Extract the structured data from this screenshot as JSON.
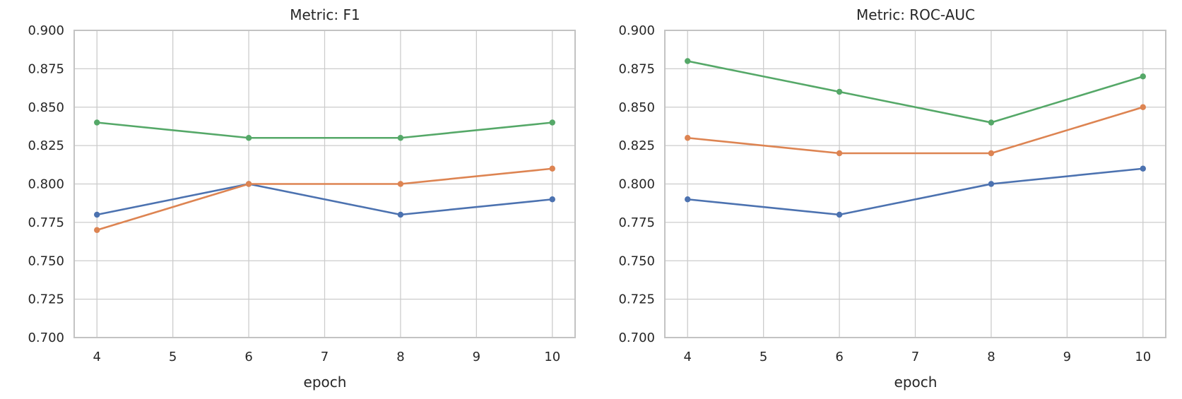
{
  "figure": {
    "background_color": "#ffffff",
    "grid_color": "#cccccc",
    "spine_color": "#c3c3c3",
    "text_color": "#262626"
  },
  "chart_data": [
    {
      "type": "line",
      "title": "Metric: F1",
      "xlabel": "epoch",
      "ylabel": "",
      "grid": true,
      "legend_position": "none",
      "x": [
        4,
        6,
        8,
        10
      ],
      "xlim": [
        3.7,
        10.3
      ],
      "ylim": [
        0.7,
        0.9
      ],
      "xticks": [
        4,
        5,
        6,
        7,
        8,
        9,
        10
      ],
      "xtick_labels": [
        "4",
        "5",
        "6",
        "7",
        "8",
        "9",
        "10"
      ],
      "yticks": [
        0.7,
        0.725,
        0.75,
        0.775,
        0.8,
        0.825,
        0.85,
        0.875,
        0.9
      ],
      "ytick_labels": [
        "0.700",
        "0.725",
        "0.750",
        "0.775",
        "0.800",
        "0.825",
        "0.850",
        "0.875",
        "0.900"
      ],
      "series": [
        {
          "name": "blue-series",
          "color": "#4C72B0",
          "marker": "circle",
          "values": [
            0.78,
            0.8,
            0.78,
            0.79
          ]
        },
        {
          "name": "orange-series",
          "color": "#DD8452",
          "marker": "circle",
          "values": [
            0.77,
            0.8,
            0.8,
            0.81
          ]
        },
        {
          "name": "green-series",
          "color": "#55A868",
          "marker": "circle",
          "values": [
            0.84,
            0.83,
            0.83,
            0.84
          ]
        }
      ]
    },
    {
      "type": "line",
      "title": "Metric: ROC-AUC",
      "xlabel": "epoch",
      "ylabel": "",
      "grid": true,
      "legend_position": "none",
      "x": [
        4,
        6,
        8,
        10
      ],
      "xlim": [
        3.7,
        10.3
      ],
      "ylim": [
        0.7,
        0.9
      ],
      "xticks": [
        4,
        5,
        6,
        7,
        8,
        9,
        10
      ],
      "xtick_labels": [
        "4",
        "5",
        "6",
        "7",
        "8",
        "9",
        "10"
      ],
      "yticks": [
        0.7,
        0.725,
        0.75,
        0.775,
        0.8,
        0.825,
        0.85,
        0.875,
        0.9
      ],
      "ytick_labels": [
        "0.700",
        "0.725",
        "0.750",
        "0.775",
        "0.800",
        "0.825",
        "0.850",
        "0.875",
        "0.900"
      ],
      "series": [
        {
          "name": "blue-series",
          "color": "#4C72B0",
          "marker": "circle",
          "values": [
            0.79,
            0.78,
            0.8,
            0.81
          ]
        },
        {
          "name": "orange-series",
          "color": "#DD8452",
          "marker": "circle",
          "values": [
            0.83,
            0.82,
            0.82,
            0.85
          ]
        },
        {
          "name": "green-series",
          "color": "#55A868",
          "marker": "circle",
          "values": [
            0.88,
            0.86,
            0.84,
            0.87
          ]
        }
      ]
    }
  ]
}
